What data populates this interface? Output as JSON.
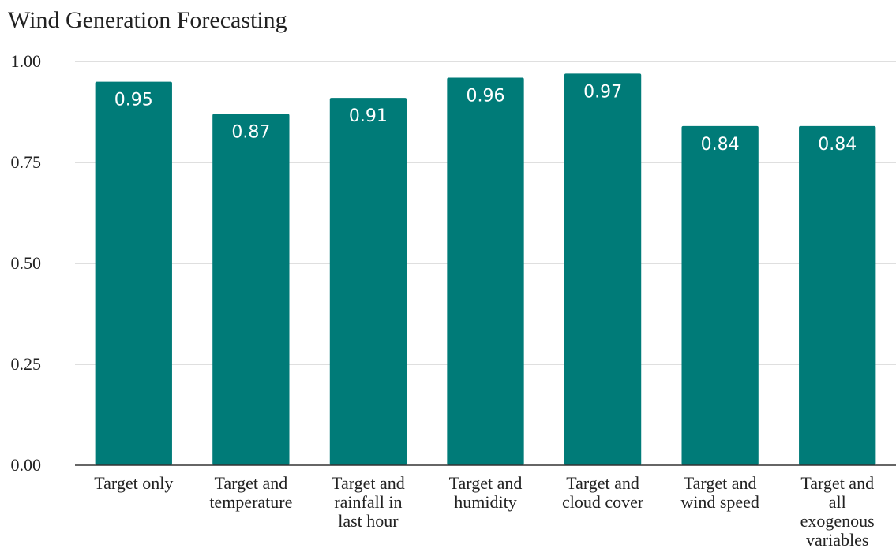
{
  "chart_data": {
    "type": "bar",
    "title": "Wind Generation Forecasting",
    "xlabel": "",
    "ylabel": "",
    "ylim": [
      0,
      1
    ],
    "yticks": [
      "0.00",
      "0.25",
      "0.50",
      "0.75",
      "1.00"
    ],
    "ytick_values": [
      0,
      0.25,
      0.5,
      0.75,
      1.0
    ],
    "categories": [
      "Target only",
      "Target and temperature",
      "Target and rainfall in last hour",
      "Target and humidity",
      "Target and cloud cover",
      "Target and wind speed",
      "Target and all exogenous variables"
    ],
    "category_lines": [
      [
        "Target only"
      ],
      [
        "Target and",
        "temperature"
      ],
      [
        "Target and",
        "rainfall in",
        "last hour"
      ],
      [
        "Target and",
        "humidity"
      ],
      [
        "Target and",
        "cloud cover"
      ],
      [
        "Target and",
        "wind speed"
      ],
      [
        "Target and",
        "all",
        "exogenous",
        "variables"
      ]
    ],
    "values": [
      0.95,
      0.87,
      0.91,
      0.96,
      0.97,
      0.84,
      0.84
    ],
    "data_labels": [
      "0.95",
      "0.87",
      "0.91",
      "0.96",
      "0.97",
      "0.84",
      "0.84"
    ],
    "bar_color": "#007b78",
    "grid": true,
    "legend": "none"
  }
}
